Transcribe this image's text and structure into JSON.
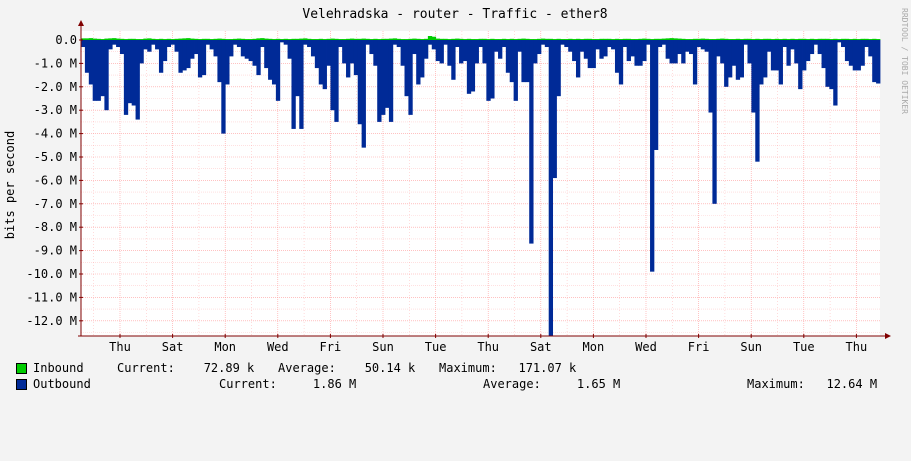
{
  "title": "Velehradska - router - Traffic - ether8",
  "watermark": "RRDTOOL / TOBI OETIKER",
  "colors": {
    "background": "#f3f3f3",
    "canvas": "#ffffff",
    "inbound": "#00cc00",
    "outbound": "#002a97",
    "grid": "#ff9d9d",
    "axis": "#800000"
  },
  "legend": {
    "inbound": {
      "name": "Inbound",
      "current": "Current:    72.89 k",
      "average": "Average:    50.14 k",
      "maximum": "Maximum:   171.07 k"
    },
    "outbound": {
      "name": "Outbound",
      "current": "Current:     1.86 M",
      "average": "Average:     1.65 M",
      "maximum": "Maximum:   12.64 M"
    }
  },
  "chart_data": {
    "type": "area",
    "ylabel": "bits per second",
    "y_ticks": [
      "0.0",
      "-1.0 M",
      "-2.0 M",
      "-3.0 M",
      "-4.0 M",
      "-5.0 M",
      "-6.0 M",
      "-7.0 M",
      "-8.0 M",
      "-9.0 M",
      "-10.0 M",
      "-11.0 M",
      "-12.0 M"
    ],
    "y_tick_values": [
      0,
      -1,
      -2,
      -3,
      -4,
      -5,
      -6,
      -7,
      -8,
      -9,
      -10,
      -11,
      -12
    ],
    "x_ticks": [
      "Thu",
      "Sat",
      "Mon",
      "Wed",
      "Fri",
      "Sun",
      "Tue",
      "Thu",
      "Sat",
      "Mon",
      "Wed",
      "Fri",
      "Sun",
      "Tue",
      "Thu"
    ],
    "ylim": [
      -12.64,
      0.15
    ],
    "y_unit": "M bits per second",
    "grid": true,
    "series": [
      {
        "name": "Inbound",
        "values": [
          0.07,
          0.07,
          0.08,
          0.06,
          0.05,
          0.04,
          0.06,
          0.07,
          0.08,
          0.06,
          0.05,
          0.04,
          0.05,
          0.05,
          0.04,
          0.04,
          0.06,
          0.07,
          0.05,
          0.04,
          0.05,
          0.04,
          0.05,
          0.04,
          0.05,
          0.06,
          0.07,
          0.08,
          0.06,
          0.05,
          0.04,
          0.05,
          0.05,
          0.04,
          0.05,
          0.06,
          0.05,
          0.04,
          0.04,
          0.05,
          0.06,
          0.05,
          0.04,
          0.04,
          0.05,
          0.07,
          0.08,
          0.06,
          0.05,
          0.04,
          0.05,
          0.04,
          0.05,
          0.04,
          0.05,
          0.05,
          0.06,
          0.07,
          0.05,
          0.04,
          0.04,
          0.05,
          0.04,
          0.05,
          0.06,
          0.05,
          0.04,
          0.04,
          0.05,
          0.06,
          0.05,
          0.05,
          0.06,
          0.05,
          0.04,
          0.05,
          0.04,
          0.05,
          0.05,
          0.06,
          0.07,
          0.05,
          0.04,
          0.04,
          0.05,
          0.06,
          0.05,
          0.04,
          0.05,
          0.17,
          0.14,
          0.06,
          0.05,
          0.05,
          0.04,
          0.05,
          0.06,
          0.05,
          0.04,
          0.05,
          0.04,
          0.04,
          0.05,
          0.05,
          0.04,
          0.05,
          0.04,
          0.04,
          0.05,
          0.04,
          0.05,
          0.04,
          0.05,
          0.06,
          0.05,
          0.04,
          0.04,
          0.05,
          0.06,
          0.05,
          0.05,
          0.04,
          0.05,
          0.04,
          0.04,
          0.05,
          0.04,
          0.05,
          0.04,
          0.05,
          0.05,
          0.04,
          0.04,
          0.05,
          0.05,
          0.05,
          0.04,
          0.05,
          0.04,
          0.05,
          0.05,
          0.04,
          0.04,
          0.05,
          0.06,
          0.05,
          0.04,
          0.05,
          0.05,
          0.06,
          0.07,
          0.08,
          0.07,
          0.06,
          0.05,
          0.04,
          0.04,
          0.05,
          0.05,
          0.06,
          0.05,
          0.04,
          0.04,
          0.05,
          0.06,
          0.05,
          0.04,
          0.04,
          0.05,
          0.04,
          0.05,
          0.05,
          0.04,
          0.05,
          0.04,
          0.05,
          0.05,
          0.04,
          0.05,
          0.04,
          0.05,
          0.04,
          0.05,
          0.04,
          0.05,
          0.05,
          0.04,
          0.05,
          0.04,
          0.05,
          0.05,
          0.05,
          0.04,
          0.05,
          0.04,
          0.05,
          0.05,
          0.04,
          0.05,
          0.04,
          0.05,
          0.05,
          0.04,
          0.05,
          0.04,
          0.05,
          0.05,
          0.04,
          0.05,
          0.05,
          0.04,
          0.05,
          0.04,
          0.05,
          0.06,
          0.05,
          0.04,
          0.04,
          0.05,
          0.05,
          0.04,
          0.05,
          0.04,
          0.05,
          0.04,
          0.05,
          0.05,
          0.04,
          0.05,
          0.04,
          0.05,
          0.05,
          0.04,
          0.05,
          0.04,
          0.05,
          0.05,
          0.04,
          0.05,
          0.04,
          0.05,
          0.05,
          0.04,
          0.05,
          0.04,
          0.05,
          0.05,
          0.04,
          0.05,
          0.04,
          0.05,
          0.05,
          0.04,
          0.05,
          0.04,
          0.05,
          0.05,
          0.04,
          0.05,
          0.04,
          0.05,
          0.05,
          0.04,
          0.05,
          0.04,
          0.05,
          0.05,
          0.04,
          0.05,
          0.04,
          0.05,
          0.05,
          0.04,
          0.05,
          0.04,
          0.05,
          0.05,
          0.04,
          0.05,
          0.04,
          0.05,
          0.05,
          0.04,
          0.05,
          0.04,
          0.05,
          0.05,
          0.04,
          0.05,
          0.04,
          0.05,
          0.05,
          0.04,
          0.05,
          0.04,
          0.05,
          0.05,
          0.04,
          0.05,
          0.04,
          0.05,
          0.05,
          0.04,
          0.05,
          0.04,
          0.05,
          0.05,
          0.04,
          0.05,
          0.04,
          0.05,
          0.05,
          0.04,
          0.05,
          0.04,
          0.05,
          0.05,
          0.04,
          0.05,
          0.04,
          0.05,
          0.05,
          0.04,
          0.05,
          0.04,
          0.05,
          0.05,
          0.04,
          0.05,
          0.04,
          0.05,
          0.05,
          0.04,
          0.05,
          0.04,
          0.05,
          0.05,
          0.04,
          0.05,
          0.04,
          0.05,
          0.05,
          0.04,
          0.05,
          0.04,
          0.05,
          0.05,
          0.04,
          0.05,
          0.04,
          0.05,
          0.05,
          0.04,
          0.05,
          0.04,
          0.05,
          0.05,
          0.04,
          0.05,
          0.04,
          0.05,
          0.05,
          0.04,
          0.05,
          0.04,
          0.05,
          0.05,
          0.04,
          0.05,
          0.04,
          0.05,
          0.05,
          0.04,
          0.05,
          0.04,
          0.05,
          0.05,
          0.04,
          0.05,
          0.04,
          0.05,
          0.05,
          0.04,
          0.05,
          0.04,
          0.05,
          0.05,
          0.04,
          0.05,
          0.04,
          0.05,
          0.05,
          0.04,
          0.05,
          0.04,
          0.05,
          0.05,
          0.04,
          0.05,
          0.04,
          0.05,
          0.05,
          0.04,
          0.05,
          0.04,
          0.05,
          0.05,
          0.04,
          0.05,
          0.04,
          0.05,
          0.05,
          0.04,
          0.05,
          0.04,
          0.05,
          0.05,
          0.04,
          0.05,
          0.04,
          0.05,
          0.05,
          0.04,
          0.05,
          0.04,
          0.05,
          0.05,
          0.04,
          0.05,
          0.04,
          0.05,
          0.05,
          0.04,
          0.05,
          0.04,
          0.05,
          0.05,
          0.04,
          0.05,
          0.04,
          0.05,
          0.05,
          0.04,
          0.05,
          0.04,
          0.05,
          0.05,
          0.04,
          0.05,
          0.04,
          0.05,
          0.05,
          0.04,
          0.05,
          0.04,
          0.05,
          0.05,
          0.04,
          0.05,
          0.04,
          0.05,
          0.05,
          0.04,
          0.05,
          0.04,
          0.05,
          0.05,
          0.04,
          0.05,
          0.04,
          0.05,
          0.05,
          0.04,
          0.05,
          0.04,
          0.05,
          0.05,
          0.04,
          0.05,
          0.04,
          0.05,
          0.05,
          0.04,
          0.05,
          0.04,
          0.05,
          0.05,
          0.04,
          0.05,
          0.04,
          0.05,
          0.05,
          0.04,
          0.05,
          0.04,
          0.05,
          0.05,
          0.04,
          0.05,
          0.04,
          0.05,
          0.05,
          0.04,
          0.05,
          0.04,
          0.05,
          0.05,
          0.04,
          0.05,
          0.04,
          0.05,
          0.05,
          0.04,
          0.05,
          0.04,
          0.05,
          0.05,
          0.04,
          0.05,
          0.04,
          0.05,
          0.05,
          0.04,
          0.05,
          0.04,
          0.05,
          0.05,
          0.04,
          0.05,
          0.04,
          0.05,
          0.05,
          0.04,
          0.05,
          0.04,
          0.05,
          0.05,
          0.04,
          0.05,
          0.04,
          0.05,
          0.05,
          0.04,
          0.05,
          0.04,
          0.05,
          0.05,
          0.04,
          0.05,
          0.04,
          0.05,
          0.05,
          0.04,
          0.05,
          0.04,
          0.05,
          0.05,
          0.04,
          0.05,
          0.04,
          0.05,
          0.05,
          0.04,
          0.05,
          0.04,
          0.05,
          0.05,
          0.04,
          0.05,
          0.04,
          0.05,
          0.05,
          0.04,
          0.05,
          0.04,
          0.05,
          0.05,
          0.04,
          0.05,
          0.04,
          0.05,
          0.05,
          0.04,
          0.05,
          0.04,
          0.05,
          0.05,
          0.04,
          0.05,
          0.04,
          0.05,
          0.05,
          0.04,
          0.05,
          0.04,
          0.05,
          0.05,
          0.04,
          0.05,
          0.04,
          0.05,
          0.05,
          0.04,
          0.05,
          0.04,
          0.05,
          0.05,
          0.04,
          0.05,
          0.04,
          0.05,
          0.05,
          0.04,
          0.05,
          0.04,
          0.05,
          0.05,
          0.04,
          0.05,
          0.04,
          0.05,
          0.05,
          0.04,
          0.05,
          0.04,
          0.05,
          0.05,
          0.04,
          0.05,
          0.04,
          0.05,
          0.05,
          0.04,
          0.05,
          0.04,
          0.05,
          0.05,
          0.04,
          0.05,
          0.04,
          0.05,
          0.05,
          0.04,
          0.05,
          0.04,
          0.05,
          0.05,
          0.04,
          0.05,
          0.04,
          0.05,
          0.05,
          0.04,
          0.05,
          0.04,
          0.05,
          0.05,
          0.04,
          0.05,
          0.04,
          0.05,
          0.05,
          0.04,
          0.05,
          0.04,
          0.05,
          0.05,
          0.04,
          0.05,
          0.04,
          0.05,
          0.05,
          0.04,
          0.05,
          0.04,
          0.05,
          0.05,
          0.04,
          0.05,
          0.04,
          0.05,
          0.05,
          0.04,
          0.05,
          0.04,
          0.05,
          0.05,
          0.04,
          0.05,
          0.04,
          0.05,
          0.05,
          0.04,
          0.05,
          0.04,
          0.05,
          0.05,
          0.04,
          0.05,
          0.04,
          0.05,
          0.05,
          0.04,
          0.05,
          0.04,
          0.05,
          0.05,
          0.04,
          0.05,
          0.04,
          0.05,
          0.05,
          0.04,
          0.05,
          0.04,
          0.05,
          0.05,
          0.04,
          0.05,
          0.04,
          0.05,
          0.05,
          0.04,
          0.05,
          0.04,
          0.05,
          0.05,
          0.04,
          0.05,
          0.04,
          0.05,
          0.05,
          0.04,
          0.05,
          0.04,
          0.05,
          0.05,
          0.04,
          0.05,
          0.04,
          0.05,
          0.05,
          0.04,
          0.05,
          0.04,
          0.05,
          0.05,
          0.04,
          0.05,
          0.04,
          0.05,
          0.05,
          0.04,
          0.05,
          0.04,
          0.05,
          0.05,
          0.04,
          0.05,
          0.04,
          0.05,
          0.05,
          0.04,
          0.05,
          0.04,
          0.05,
          0.05,
          0.04,
          0.05,
          0.04,
          0.05,
          0.05,
          0.04,
          0.05,
          0.04,
          0.05,
          0.05,
          0.04,
          0.05,
          0.04,
          0.05,
          0.05,
          0.04,
          0.05,
          0.04,
          0.05,
          0.05,
          0.04,
          0.05,
          0.04,
          0.05,
          0.05,
          0.04,
          0.05,
          0.04,
          0.05,
          0.05,
          0.04,
          0.05,
          0.04,
          0.05,
          0.05,
          0.04,
          0.05,
          0.04,
          0.05,
          0.05,
          0.04,
          0.05,
          0.04,
          0.05,
          0.05,
          0.04,
          0.05,
          0.04,
          0.05,
          0.05,
          0.04,
          0.05,
          0.04,
          0.05,
          0.05,
          0.04,
          0.05,
          0.04,
          0.05,
          0.05,
          0.04,
          0.05,
          0.04,
          0.05,
          0.05,
          0.04,
          0.05,
          0.04,
          0.05,
          0.05,
          0.04,
          0.05,
          0.04,
          0.05,
          0.05,
          0.04,
          0.05,
          0.04,
          0.05,
          0.05,
          0.04,
          0.05,
          0.04,
          0.05,
          0.05,
          0.04,
          0.05,
          0.04,
          0.05,
          0.05,
          0.04,
          0.05,
          0.04,
          0.05,
          0.05,
          0.04,
          0.05,
          0.04,
          0.05,
          0.05,
          0.04,
          0.05,
          0.04,
          0.05,
          0.05,
          0.04,
          0.05,
          0.04,
          0.05,
          0.05,
          0.04,
          0.05,
          0.04,
          0.05,
          0.05,
          0.04
        ]
      },
      {
        "name": "Outbound",
        "values": [
          -0.3,
          -1.4,
          -1.9,
          -2.6,
          -2.6,
          -2.4,
          -3.0,
          -0.4,
          -0.2,
          -0.3,
          -0.6,
          -3.2,
          -2.7,
          -2.8,
          -3.4,
          -1.0,
          -0.4,
          -0.5,
          -0.2,
          -0.4,
          -1.4,
          -0.9,
          -0.3,
          -0.2,
          -0.5,
          -1.4,
          -1.3,
          -1.2,
          -0.8,
          -0.6,
          -1.6,
          -1.5,
          -0.2,
          -0.4,
          -0.7,
          -1.8,
          -4.0,
          -1.9,
          -0.7,
          -0.2,
          -0.3,
          -0.7,
          -0.8,
          -0.9,
          -1.1,
          -1.5,
          -0.3,
          -1.2,
          -1.7,
          -1.9,
          -2.6,
          -0.1,
          -0.2,
          -0.8,
          -3.8,
          -2.4,
          -3.8,
          -0.2,
          -0.3,
          -0.7,
          -1.2,
          -1.9,
          -2.1,
          -1.1,
          -3.0,
          -3.5,
          -0.3,
          -1.0,
          -1.6,
          -1.0,
          -1.5,
          -3.6,
          -4.6,
          -0.2,
          -0.6,
          -1.1,
          -3.5,
          -3.2,
          -2.9,
          -3.5,
          -0.2,
          -0.3,
          -1.1,
          -2.4,
          -3.2,
          -0.6,
          -1.9,
          -1.6,
          -0.8,
          -0.2,
          -0.4,
          -0.9,
          -1.0,
          -0.2,
          -1.1,
          -1.7,
          -0.3,
          -1.0,
          -0.9,
          -2.3,
          -2.2,
          -1.0,
          -0.3,
          -1.0,
          -2.6,
          -2.5,
          -0.5,
          -0.8,
          -0.3,
          -1.4,
          -1.8,
          -2.6,
          -0.5,
          -1.8,
          -1.8,
          -8.7,
          -1.0,
          -0.6,
          -0.2,
          -0.3,
          -12.64,
          -5.9,
          -2.4,
          -0.2,
          -0.3,
          -0.5,
          -0.9,
          -1.6,
          -0.5,
          -0.8,
          -1.2,
          -1.2,
          -0.4,
          -0.8,
          -0.7,
          -0.3,
          -0.4,
          -1.4,
          -1.9,
          -0.3,
          -0.9,
          -0.7,
          -1.1,
          -1.1,
          -0.9,
          -0.2,
          -9.9,
          -4.7,
          -0.3,
          -0.2,
          -0.8,
          -1.0,
          -1.0,
          -0.6,
          -1.0,
          -0.5,
          -0.6,
          -1.9,
          -0.3,
          -0.4,
          -0.5,
          -3.1,
          -7.0,
          -0.7,
          -1.0,
          -2.0,
          -1.6,
          -1.1,
          -1.7,
          -1.6,
          -0.2,
          -1.0,
          -3.1,
          -5.2,
          -1.9,
          -1.6,
          -0.5,
          -1.3,
          -1.3,
          -1.9,
          -0.3,
          -1.1,
          -0.4,
          -1.0,
          -2.1,
          -1.3,
          -0.9,
          -0.6,
          -0.2,
          -0.6,
          -1.2,
          -2.0,
          -2.1,
          -2.8,
          -0.1,
          -0.3,
          -0.9,
          -1.1,
          -1.3,
          -1.3,
          -1.1,
          -0.3,
          -0.7,
          -1.8,
          -1.86
        ]
      }
    ]
  }
}
